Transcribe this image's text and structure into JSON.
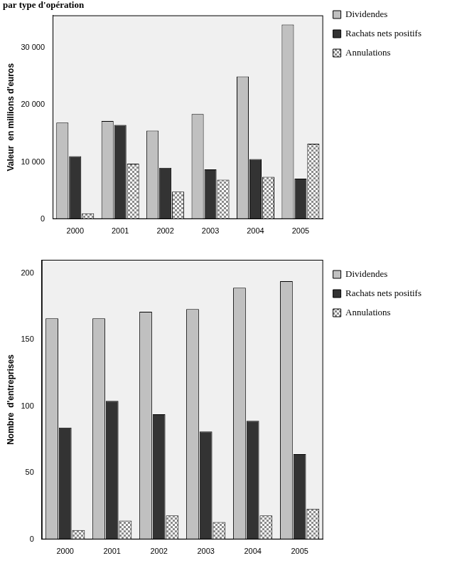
{
  "chart_data": [
    {
      "type": "bar",
      "title": "par type d'opération",
      "y_label": "Valeur  en millions d'euros",
      "categories": [
        "2000",
        "2001",
        "2002",
        "2003",
        "2004",
        "2005"
      ],
      "series": [
        {
          "name": "Dividendes",
          "color": "#c0c0c0",
          "values": [
            16900,
            17200,
            15500,
            18400,
            25000,
            34100
          ]
        },
        {
          "name": "Rachats nets positifs",
          "color": "#333333",
          "values": [
            11000,
            16500,
            9000,
            8700,
            10500,
            7100
          ]
        },
        {
          "name": "Annulations",
          "color": "#8c8c8c",
          "values": [
            1000,
            9700,
            4800,
            6900,
            7400,
            13200
          ]
        }
      ],
      "ylim": [
        0,
        35700
      ],
      "yticks": [
        0,
        {
          "value": 10000,
          "label": "10 000"
        },
        {
          "value": 20000,
          "label": "20 000"
        },
        {
          "value": 30000,
          "label": "30 000"
        }
      ],
      "grid": false,
      "legend": "right"
    },
    {
      "type": "bar",
      "y_label": "Nombre  d'entreprises",
      "categories": [
        "2000",
        "2001",
        "2002",
        "2003",
        "2004",
        "2005"
      ],
      "series": [
        {
          "name": "Dividendes",
          "color": "#c0c0c0",
          "values": [
            166,
            166,
            171,
            173,
            189,
            194
          ]
        },
        {
          "name": "Rachats nets positifs",
          "color": "#333333",
          "values": [
            84,
            104,
            94,
            81,
            89,
            64
          ]
        },
        {
          "name": "Annulations",
          "color": "#8c8c8c",
          "values": [
            7,
            14,
            18,
            13,
            18,
            23
          ]
        }
      ],
      "ylim": [
        0,
        210
      ],
      "yticks": [
        0,
        50,
        100,
        150,
        200
      ],
      "grid": false,
      "legend": "right"
    }
  ]
}
